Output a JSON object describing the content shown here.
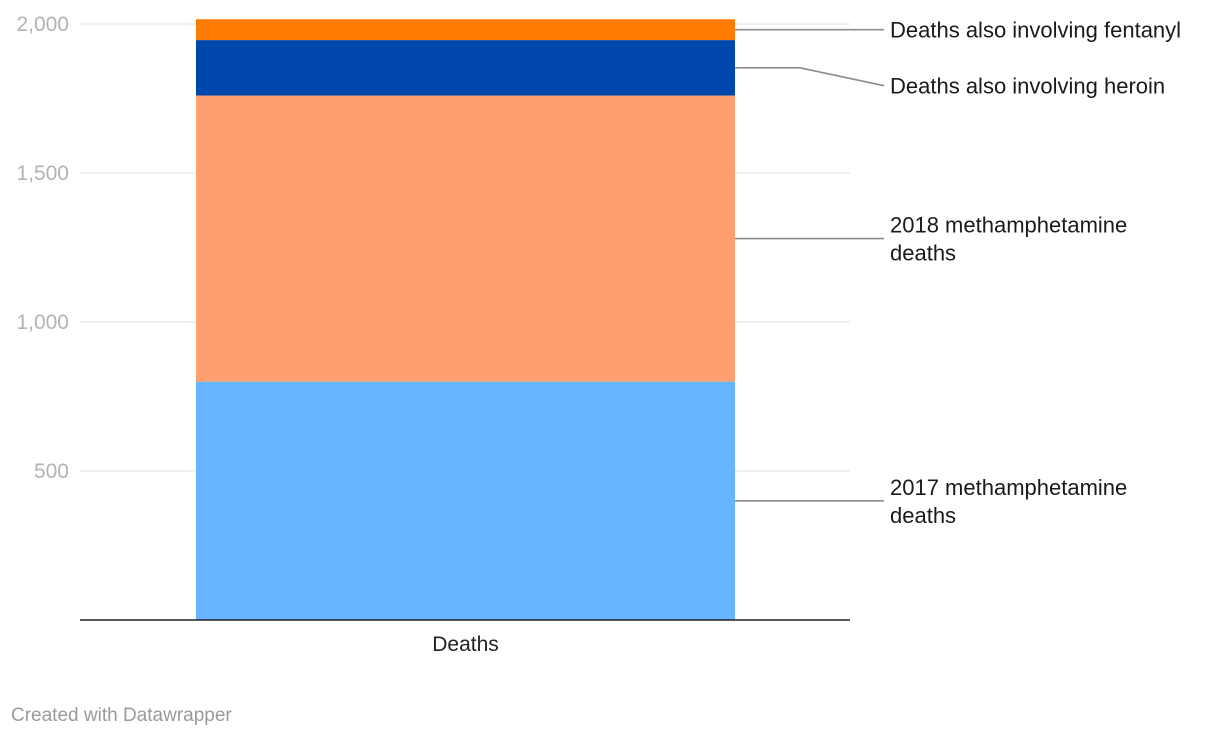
{
  "chart_data": {
    "type": "bar",
    "stacked": true,
    "categories": [
      "Deaths"
    ],
    "series": [
      {
        "name": "2017 methamphetamine deaths",
        "label_lines": [
          "2017 methamphetamine",
          "deaths"
        ],
        "values": [
          800
        ],
        "color": "#67b4ff"
      },
      {
        "name": "2018 methamphetamine deaths",
        "label_lines": [
          "2018 methamphetamine",
          "deaths"
        ],
        "values": [
          960
        ],
        "color": "#ff9e6e"
      },
      {
        "name": "Deaths also involving heroin",
        "label_lines": [
          "Deaths also involving heroin"
        ],
        "values": [
          186
        ],
        "color": "#0047ab"
      },
      {
        "name": "Deaths also involving fentanyl",
        "label_lines": [
          "Deaths also involving fentanyl"
        ],
        "values": [
          70
        ],
        "color": "#ff7c00"
      }
    ],
    "y_ticks": [
      500,
      1000,
      1500,
      2000
    ],
    "y_tick_labels": [
      "500",
      "1,000",
      "1,500",
      "2,000"
    ],
    "ylim": [
      0,
      2000
    ],
    "xlabel": "",
    "ylabel": "",
    "grid": true,
    "legend": "direct labels on right"
  },
  "credit": "Created with Datawrapper"
}
